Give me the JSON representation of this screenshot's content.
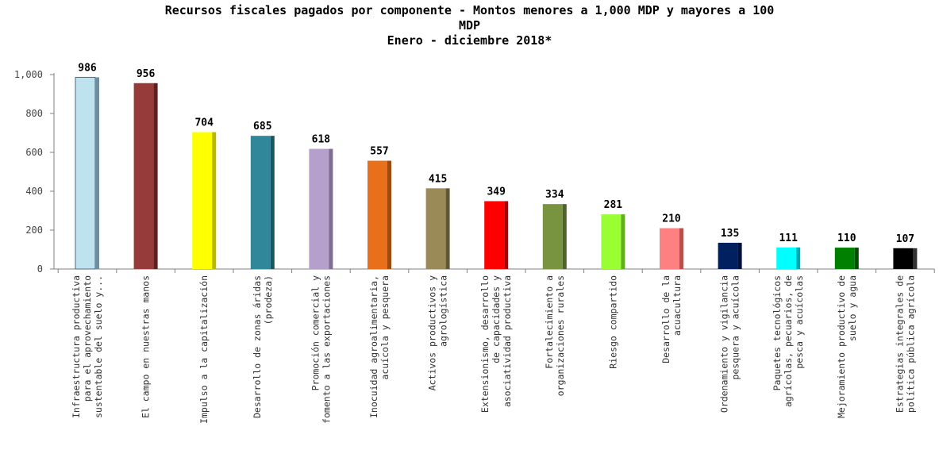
{
  "chart_data": {
    "type": "bar",
    "title_lines": [
      "Recursos fiscales pagados por componente - Montos menores a 1,000 MDP y mayores a 100",
      "MDP",
      "Enero - diciembre 2018*"
    ],
    "xlabel": "",
    "ylabel": "",
    "ylim": [
      0,
      1000
    ],
    "yticks": [
      "0",
      "200",
      "400",
      "600",
      "800",
      "1,000"
    ],
    "grid": false,
    "legend": "none",
    "categories": [
      {
        "lines": [
          "Infraestructura productiva",
          "para el aprovechamiento",
          "sustentable del suelo y..."
        ]
      },
      {
        "lines": [
          "El campo en nuestras manos"
        ]
      },
      {
        "lines": [
          "Impulso a la capitalización"
        ]
      },
      {
        "lines": [
          "Desarrollo de zonas áridas",
          "(prodeza)"
        ]
      },
      {
        "lines": [
          "Promoción comercial y",
          "fomento a las exportaciones"
        ]
      },
      {
        "lines": [
          "Inocuidad agroalimentaria,",
          "acuícola y pesquera"
        ]
      },
      {
        "lines": [
          "Activos productivos y",
          "agrologística"
        ]
      },
      {
        "lines": [
          "Extensionismo, desarrollo",
          "de capacidades y",
          "asociatividad productiva"
        ]
      },
      {
        "lines": [
          "Fortalecimiento a",
          "organizaciones rurales"
        ]
      },
      {
        "lines": [
          "Riesgo compartido"
        ]
      },
      {
        "lines": [
          "Desarrollo de la",
          "acuacultura"
        ]
      },
      {
        "lines": [
          "Ordenamiento y vigilancia",
          "pesquera y acuícola"
        ]
      },
      {
        "lines": [
          "Paquetes tecnológicos",
          "agrícolas, pecuarios, de",
          "pesca y acuícolas"
        ]
      },
      {
        "lines": [
          "Mejoramiento productivo de",
          "suelo y agua"
        ]
      },
      {
        "lines": [
          "Estrategias integrales de",
          "política pública agrícola"
        ]
      }
    ],
    "values": [
      986,
      956,
      704,
      685,
      618,
      557,
      415,
      349,
      334,
      281,
      210,
      135,
      111,
      110,
      107
    ],
    "data_labels": [
      "986",
      "956",
      "704",
      "685",
      "618",
      "557",
      "415",
      "349",
      "334",
      "281",
      "210",
      "135",
      "111",
      "110",
      "107"
    ],
    "colors": [
      "#BFE3EE",
      "#963A3A",
      "#FFFF00",
      "#31879A",
      "#B4A0CB",
      "#E8701A",
      "#9A8A58",
      "#FF0000",
      "#789441",
      "#99FF33",
      "#FF8080",
      "#002060",
      "#00FFFF",
      "#008000",
      "#000000"
    ],
    "side_colors": [
      "#6F8EA0",
      "#5E1F1F",
      "#B8B800",
      "#1B5562",
      "#7D6E90",
      "#9E4A0E",
      "#615736",
      "#A80000",
      "#4E6329",
      "#5FB01A",
      "#B85050",
      "#00103A",
      "#00A8B0",
      "#004D00",
      "#333333"
    ]
  }
}
